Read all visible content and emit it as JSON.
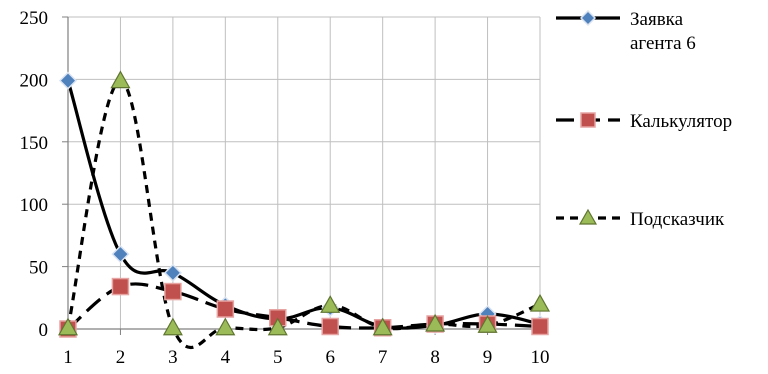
{
  "chart_data": {
    "type": "line",
    "x": [
      1,
      2,
      3,
      4,
      5,
      6,
      7,
      8,
      9,
      10
    ],
    "ylim": [
      0,
      250
    ],
    "yticks": [
      0,
      50,
      100,
      150,
      200,
      250
    ],
    "grid": true,
    "legend_position": "right",
    "series": [
      {
        "name": "Заявка агента 6",
        "name_lines": [
          "Заявка",
          "агента 6"
        ],
        "values": [
          199,
          60,
          45,
          19,
          8,
          17,
          2,
          3,
          12,
          4
        ],
        "marker": "diamond",
        "line_style": "solid",
        "marker_color": "#4f81bd"
      },
      {
        "name": "Калькулятор",
        "values": [
          0,
          34,
          30,
          16,
          9,
          2,
          1,
          4,
          4,
          2
        ],
        "marker": "square",
        "line_style": "long-dash",
        "marker_color": "#c0504d"
      },
      {
        "name": "Подсказчик",
        "values": [
          1,
          199,
          1,
          1,
          1,
          19,
          1,
          4,
          3,
          20
        ],
        "marker": "triangle",
        "line_style": "short-dash",
        "marker_color": "#9bbb59"
      }
    ]
  }
}
